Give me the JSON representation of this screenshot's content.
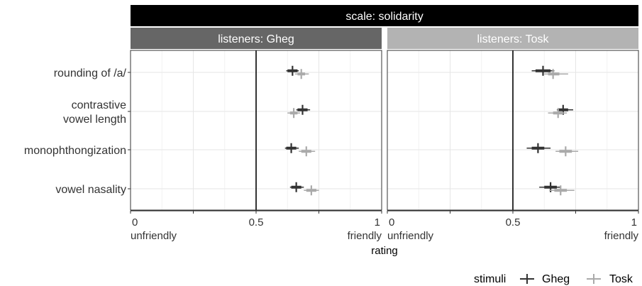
{
  "chart_data": {
    "type": "scatter",
    "scale_strip": "scale: solidarity",
    "panels": [
      {
        "strip": "listeners: Gheg",
        "strip_color": "#666666"
      },
      {
        "strip": "listeners: Tosk",
        "strip_color": "#b3b3b3"
      }
    ],
    "categories": [
      "rounding of /a/",
      [
        "contrastive",
        "vowel length"
      ],
      "monophthongization",
      "vowel nasality"
    ],
    "xlim": [
      0,
      1
    ],
    "x_ticks": [
      "0",
      "0.5",
      "1"
    ],
    "x_tick_values": [
      0,
      0.5,
      1
    ],
    "x_end_labels": {
      "left": "unfriendly",
      "right": "friendly"
    },
    "xlabel": "rating",
    "reference_line": 0.5,
    "grid": true,
    "legend": {
      "title": "stimuli",
      "position": "bottom-right",
      "entries": [
        "Gheg",
        "Tosk"
      ]
    },
    "series_colors": {
      "Gheg": "#333333",
      "Tosk": "#aaaaaa"
    },
    "series": [
      {
        "name": "Gheg",
        "panel": "listeners: Gheg",
        "points": [
          {
            "category": 0,
            "x": 0.645,
            "ci_thick": [
              0.625,
              0.665
            ],
            "ci_thin": [
              0.62,
              0.67
            ]
          },
          {
            "category": 1,
            "x": 0.685,
            "ci_thick": [
              0.665,
              0.705
            ],
            "ci_thin": [
              0.66,
              0.715
            ]
          },
          {
            "category": 2,
            "x": 0.64,
            "ci_thick": [
              0.62,
              0.66
            ],
            "ci_thin": [
              0.615,
              0.67
            ]
          },
          {
            "category": 3,
            "x": 0.66,
            "ci_thick": [
              0.64,
              0.68
            ],
            "ci_thin": [
              0.635,
              0.69
            ]
          }
        ]
      },
      {
        "name": "Tosk",
        "panel": "listeners: Gheg",
        "points": [
          {
            "category": 0,
            "x": 0.68,
            "ci_thick": [
              0.665,
              0.695
            ],
            "ci_thin": [
              0.655,
              0.71
            ]
          },
          {
            "category": 1,
            "x": 0.65,
            "ci_thick": [
              0.635,
              0.665
            ],
            "ci_thin": [
              0.625,
              0.675
            ]
          },
          {
            "category": 2,
            "x": 0.7,
            "ci_thick": [
              0.68,
              0.72
            ],
            "ci_thin": [
              0.67,
              0.735
            ]
          },
          {
            "category": 3,
            "x": 0.72,
            "ci_thick": [
              0.7,
              0.74
            ],
            "ci_thin": [
              0.69,
              0.75
            ]
          }
        ]
      },
      {
        "name": "Gheg",
        "panel": "listeners: Tosk",
        "points": [
          {
            "category": 0,
            "x": 0.62,
            "ci_thick": [
              0.59,
              0.65
            ],
            "ci_thin": [
              0.575,
              0.665
            ]
          },
          {
            "category": 1,
            "x": 0.7,
            "ci_thick": [
              0.68,
              0.72
            ],
            "ci_thin": [
              0.675,
              0.74
            ]
          },
          {
            "category": 2,
            "x": 0.6,
            "ci_thick": [
              0.575,
              0.625
            ],
            "ci_thin": [
              0.555,
              0.65
            ]
          },
          {
            "category": 3,
            "x": 0.65,
            "ci_thick": [
              0.625,
              0.675
            ],
            "ci_thin": [
              0.605,
              0.69
            ]
          }
        ]
      },
      {
        "name": "Tosk",
        "panel": "listeners: Tosk",
        "points": [
          {
            "category": 0,
            "x": 0.66,
            "ci_thick": [
              0.64,
              0.685
            ],
            "ci_thin": [
              0.625,
              0.72
            ]
          },
          {
            "category": 1,
            "x": 0.68,
            "ci_thick": [
              0.66,
              0.7
            ],
            "ci_thin": [
              0.64,
              0.715
            ]
          },
          {
            "category": 2,
            "x": 0.71,
            "ci_thick": [
              0.685,
              0.735
            ],
            "ci_thin": [
              0.67,
              0.76
            ]
          },
          {
            "category": 3,
            "x": 0.69,
            "ci_thick": [
              0.665,
              0.715
            ],
            "ci_thin": [
              0.645,
              0.745
            ]
          }
        ]
      }
    ]
  }
}
